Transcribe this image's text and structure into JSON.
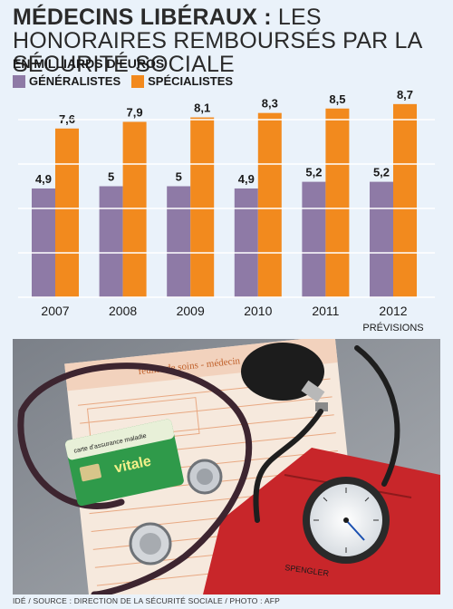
{
  "title_bold": "MÉDECINS LIBÉRAUX :",
  "title_rest": " LES HONORAIRES REMBOURSÉS PAR LA SÉCURITÉ SOCIALE",
  "unit_label": "EN MILLIARDS D’EUROS",
  "colors": {
    "generalistes": "#8e7aa6",
    "specialistes": "#f28a1e",
    "background": "#eaf2fa"
  },
  "chart_data": {
    "type": "bar",
    "categories": [
      "2007",
      "2008",
      "2009",
      "2010",
      "2011",
      "2012"
    ],
    "category_notes": [
      "",
      "",
      "",
      "",
      "",
      "PRÉVISIONS"
    ],
    "series": [
      {
        "name": "GÉNÉRALISTES",
        "values": [
          4.9,
          5,
          5,
          4.9,
          5.2,
          5.2
        ],
        "labels": [
          "4,9",
          "5",
          "5",
          "4,9",
          "5,2",
          "5,2"
        ]
      },
      {
        "name": "SPÉCIALISTES",
        "values": [
          7.6,
          7.9,
          8.1,
          8.3,
          8.5,
          8.7
        ],
        "labels": [
          "7,6",
          "7,9",
          "8,1",
          "8,3",
          "8,5",
          "8,7"
        ]
      }
    ],
    "ylim": [
      0,
      8.7
    ],
    "grid": true
  },
  "photo": {
    "form_title": "feuille de soins - médecin",
    "card_text": "carte d’assurance maladie",
    "card_brand": "vitale",
    "gauge_brand": "SPENGLER"
  },
  "source": "IDÉ / SOURCE : DIRECTION DE LA SÉCURITÉ SOCIALE / PHOTO : AFP"
}
